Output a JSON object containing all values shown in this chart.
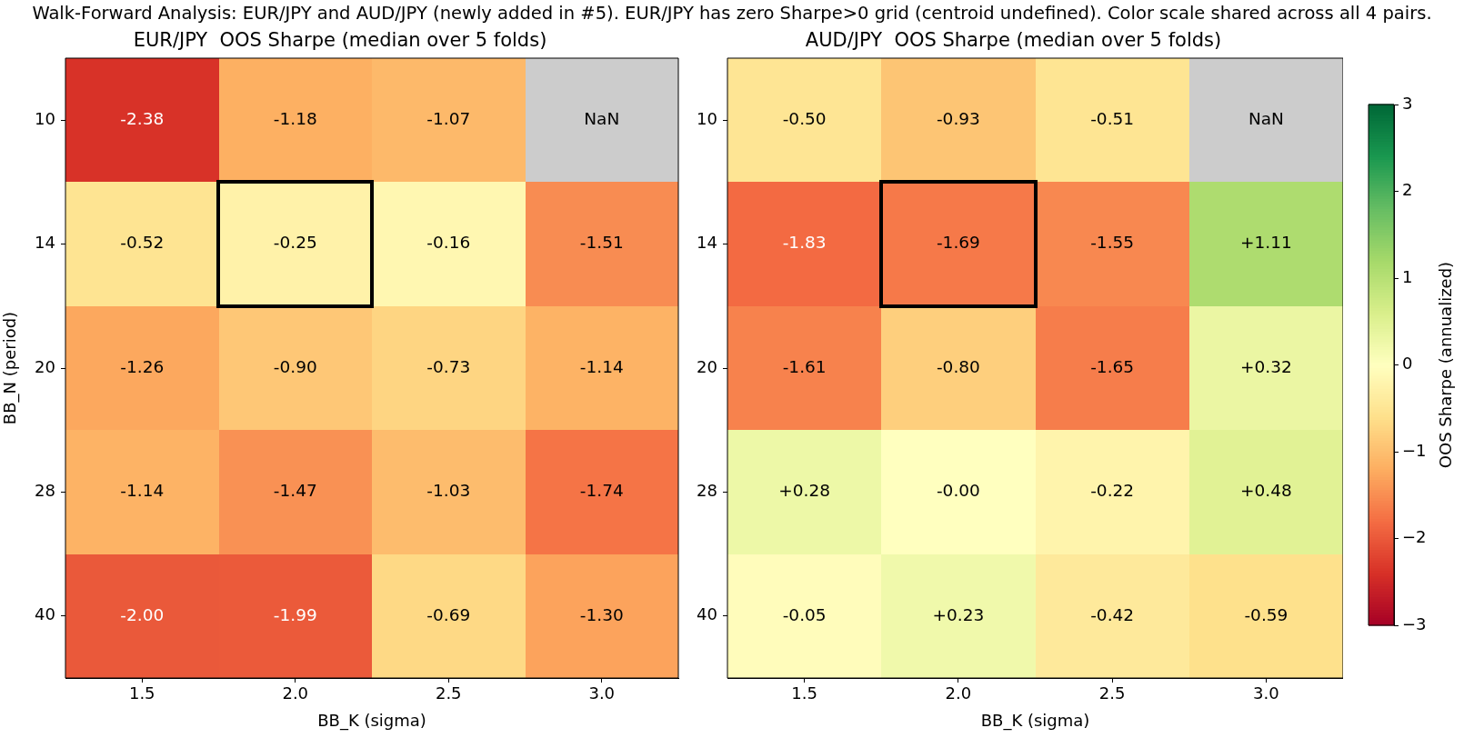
{
  "chart_data": [
    {
      "type": "heatmap",
      "title": "EUR/JPY  OOS Sharpe (median over 5 folds)",
      "xlabel": "BB_K (sigma)",
      "ylabel": "BB_N (period)",
      "annotations": [
        "Walk-Forward Analysis: EUR/JPY and AUD/JPY (newly added in #5). EUR/JPY has zero Sharpe>0 grid (centroid undefined). Color scale shared across all 4 pairs."
      ],
      "categories": [
        "1.5",
        "2.0",
        "2.5",
        "3.0"
      ],
      "y_categories": [
        "10",
        "14",
        "20",
        "28",
        "40"
      ],
      "cells": [
        [
          -2.38,
          -1.18,
          -1.07,
          null
        ],
        [
          -0.52,
          -0.25,
          -0.16,
          -1.51
        ],
        [
          -1.26,
          -0.9,
          -0.73,
          -1.14
        ],
        [
          -1.14,
          -1.47,
          -1.03,
          -1.74
        ],
        [
          -2.0,
          -1.99,
          -0.69,
          -1.3
        ]
      ],
      "cell_labels": [
        [
          "-2.38",
          "-1.18",
          "-1.07",
          "NaN"
        ],
        [
          "-0.52",
          "-0.25",
          "-0.16",
          "-1.51"
        ],
        [
          "-1.26",
          "-0.90",
          "-0.73",
          "-1.14"
        ],
        [
          "-1.14",
          "-1.47",
          "-1.03",
          "-1.74"
        ],
        [
          "-2.00",
          "-1.99",
          "-0.69",
          "-1.30"
        ]
      ]
    },
    {
      "type": "heatmap",
      "title": "AUD/JPY  OOS Sharpe (median over 5 folds)",
      "xlabel": "BB_K (sigma)",
      "clabel": "OOS Sharpe (annualized)",
      "categories": [
        "1.5",
        "2.0",
        "2.5",
        "3.0"
      ],
      "y_categories": [
        "10",
        "14",
        "20",
        "28",
        "40"
      ],
      "cells": [
        [
          -0.5,
          -0.93,
          -0.51,
          null
        ],
        [
          -1.83,
          -1.69,
          -1.55,
          1.11
        ],
        [
          -1.61,
          -0.8,
          -1.65,
          0.32
        ],
        [
          0.28,
          0.0,
          -0.22,
          0.48
        ],
        [
          -0.05,
          0.23,
          -0.42,
          -0.59
        ]
      ],
      "cell_labels": [
        [
          "-0.50",
          "-0.93",
          "-0.51",
          "NaN"
        ],
        [
          "-1.83",
          "-1.69",
          "-1.55",
          "+1.11"
        ],
        [
          "-1.61",
          "-0.80",
          "-1.65",
          "+0.32"
        ],
        [
          "+0.28",
          "-0.00",
          "-0.22",
          "+0.48"
        ],
        [
          "-0.05",
          "+0.23",
          "-0.42",
          "-0.59"
        ]
      ],
      "clim": [
        -3,
        3
      ],
      "cticks": [
        {
          "value": -3,
          "label": "−3"
        },
        {
          "value": -2,
          "label": "−2"
        },
        {
          "value": -1,
          "label": "−1"
        },
        0,
        1,
        2,
        3
      ]
    }
  ]
}
